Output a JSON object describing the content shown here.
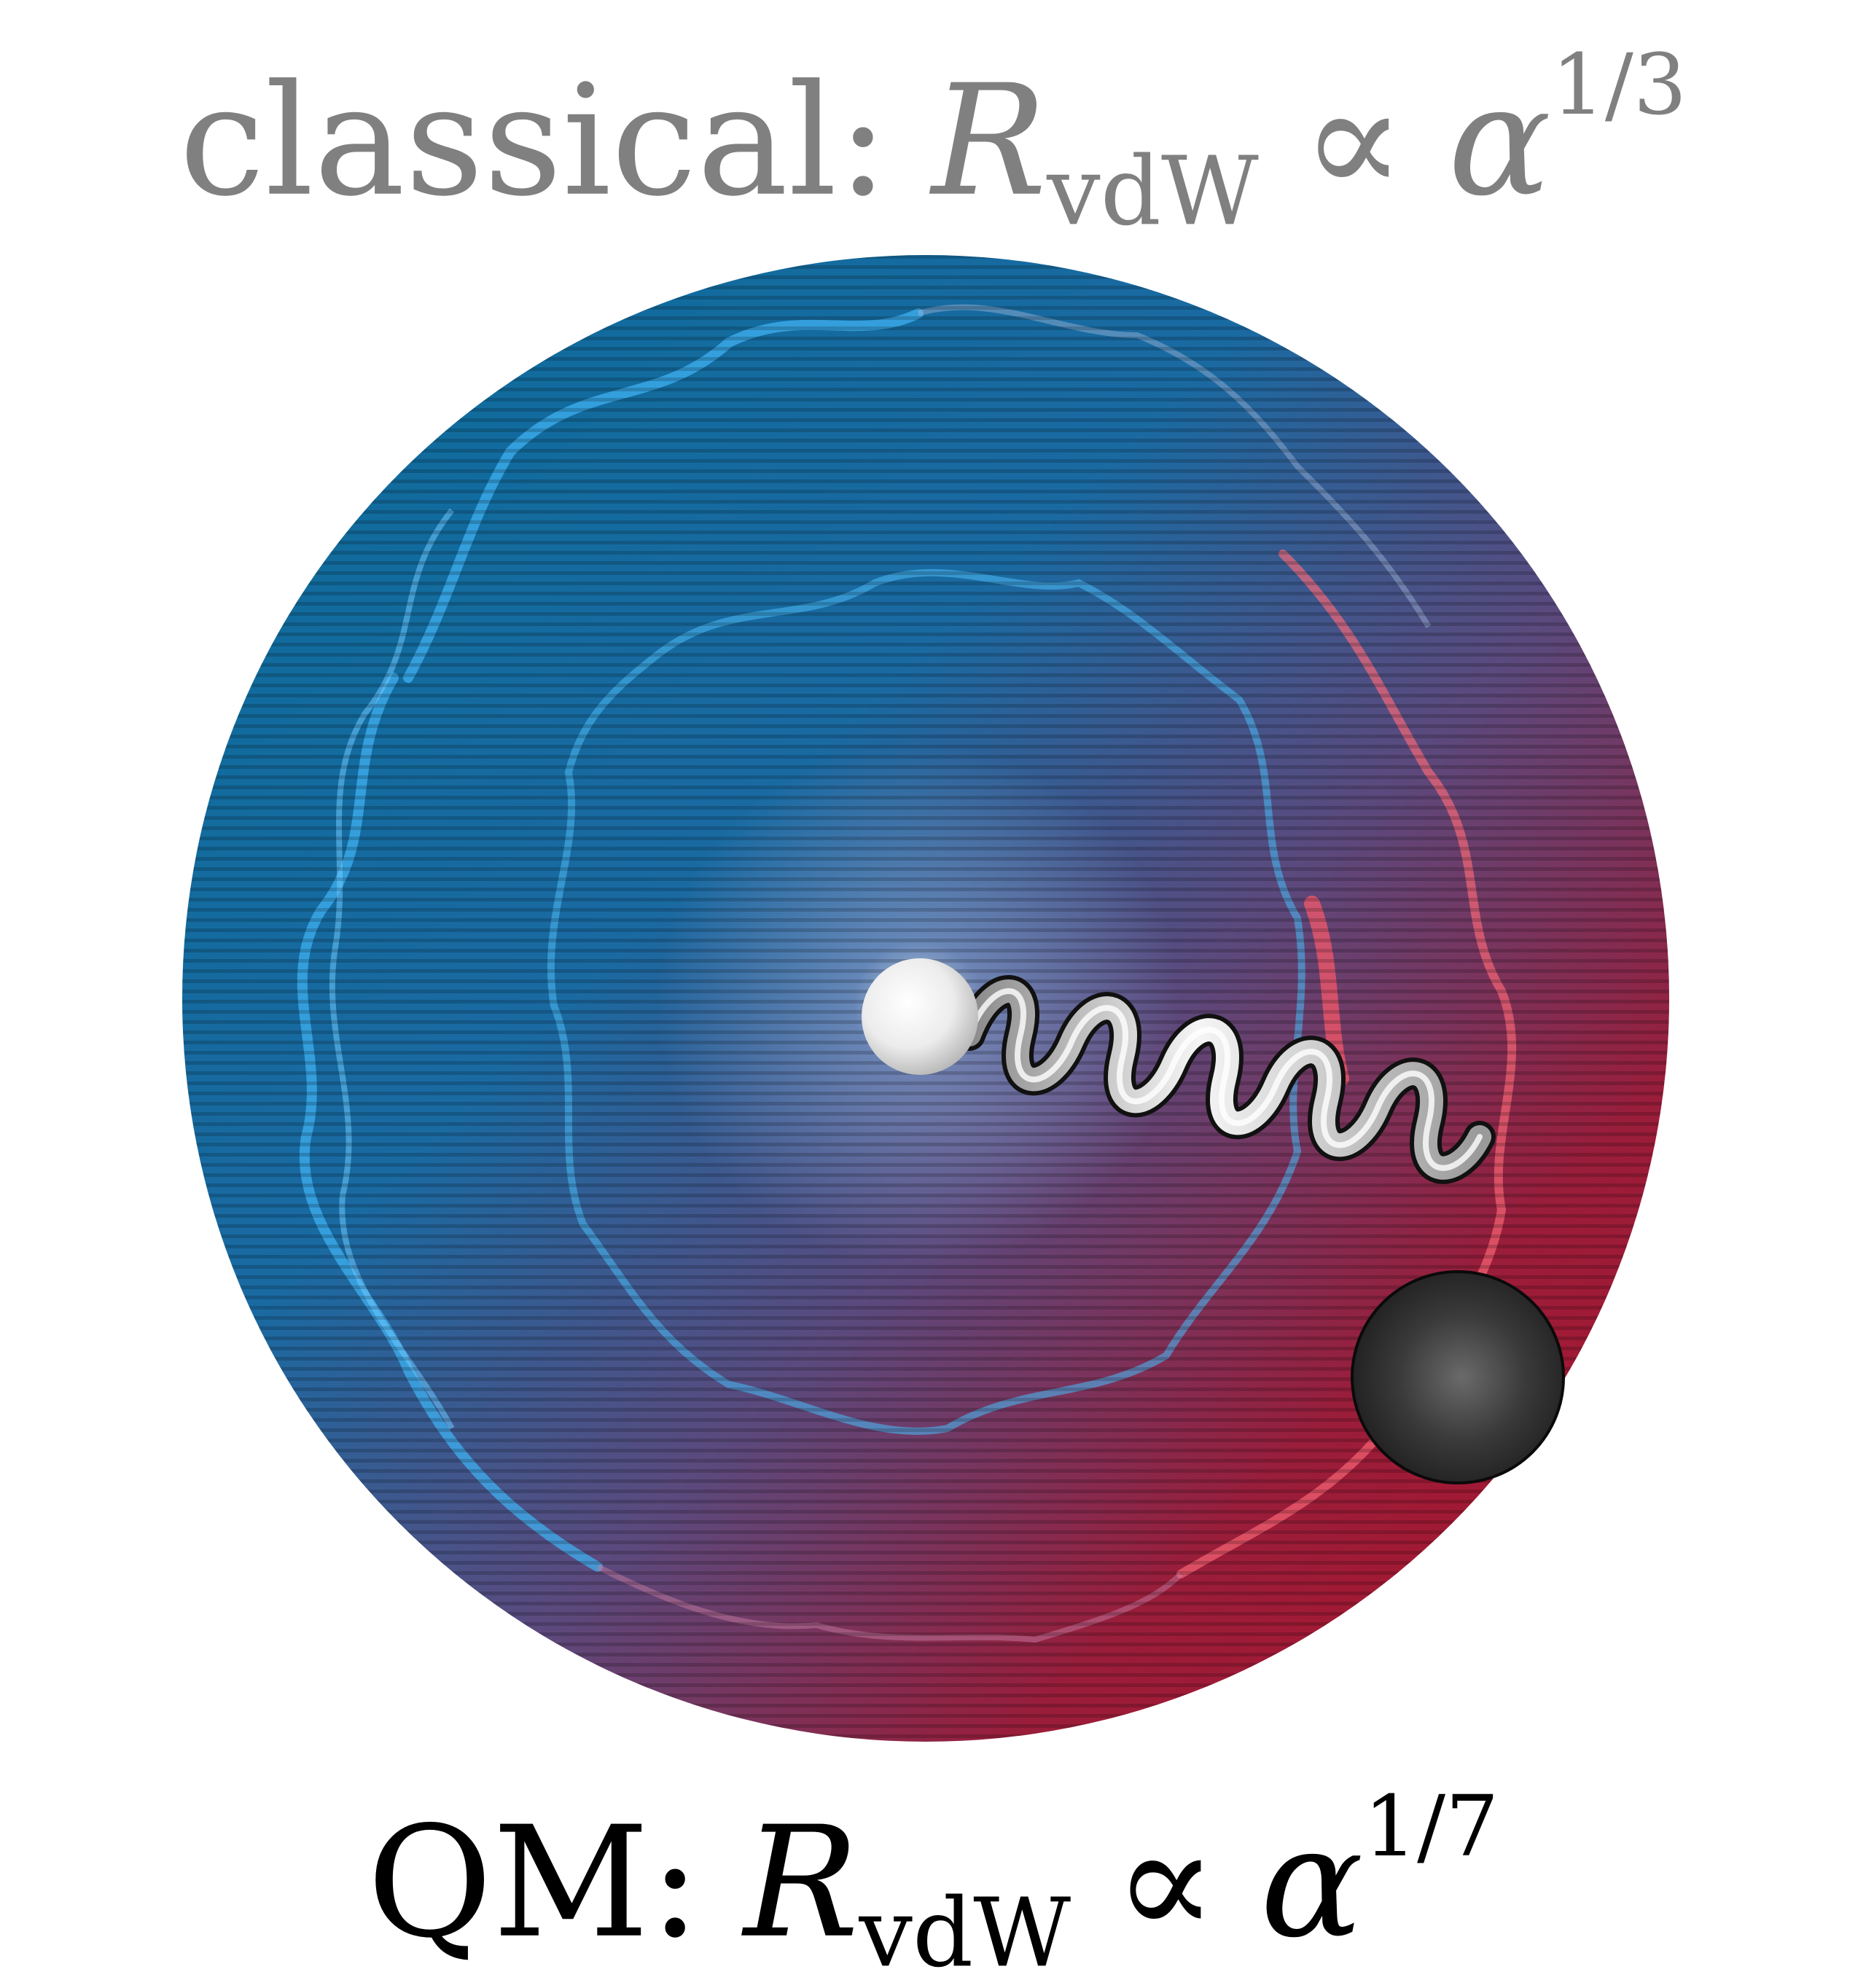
{
  "top_formula": {
    "prefix": "classical:",
    "symbol": "R",
    "subscript": "vdW",
    "relation": "∝",
    "base": "α",
    "exponent": "1/3"
  },
  "bottom_formula": {
    "prefix": "QM:",
    "symbol": "R",
    "subscript": "vdW",
    "relation": "∝",
    "base": "α",
    "exponent": "1/7"
  },
  "colors": {
    "sphere_blue": "#0e6aa0",
    "sphere_red": "#b0152e",
    "wave_blue": "#3fb0f0",
    "wave_red": "#ff6a78",
    "spring_silver": "#c8c8c8",
    "small_ball": "#f2f2f2",
    "large_ball": "#2a2a2a",
    "classical_text": "#808080",
    "qm_text": "#000000"
  },
  "icons": {
    "sphere": "charge-density-sphere",
    "spring": "spring-coil",
    "small_ball": "nucleus-ball",
    "large_ball": "drude-particle-ball"
  }
}
